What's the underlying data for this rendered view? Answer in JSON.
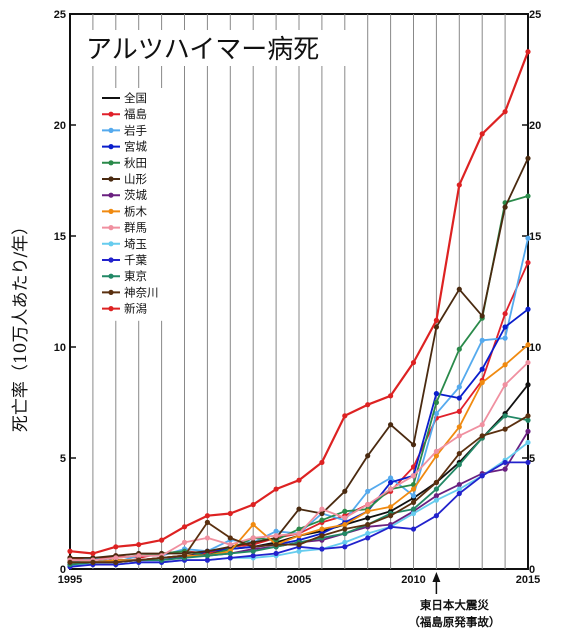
{
  "chart_data": {
    "type": "line",
    "title": "アルツハイマー病死",
    "ylabel": "死亡率（10万人あたり/年）",
    "xlabel": "",
    "x": [
      1995,
      1996,
      1997,
      1998,
      1999,
      2000,
      2001,
      2002,
      2003,
      2004,
      2005,
      2006,
      2007,
      2008,
      2009,
      2010,
      2011,
      2012,
      2013,
      2014,
      2015
    ],
    "xlim": [
      1995,
      2015
    ],
    "ylim": [
      0,
      25
    ],
    "x_ticks": [
      1995,
      2000,
      2005,
      2010,
      2015
    ],
    "y_ticks": [
      0,
      5,
      10,
      15,
      20,
      25
    ],
    "grid": "vertical lines each year",
    "legend_position": "top-left",
    "series": [
      {
        "name": "全国",
        "color": "#111111",
        "values": [
          0.3,
          0.3,
          0.4,
          0.4,
          0.5,
          0.6,
          0.7,
          0.9,
          1.0,
          1.2,
          1.5,
          1.7,
          2.0,
          2.3,
          2.6,
          3.2,
          3.9,
          4.8,
          5.9,
          7.0,
          8.3
        ]
      },
      {
        "name": "福島",
        "color": "#e0202a",
        "values": [
          0.5,
          0.4,
          0.6,
          0.5,
          0.7,
          0.8,
          0.7,
          1.0,
          1.1,
          1.4,
          1.6,
          2.1,
          2.4,
          2.9,
          3.5,
          4.6,
          6.8,
          7.1,
          8.5,
          11.5,
          13.8
        ]
      },
      {
        "name": "岩手",
        "color": "#55aaee",
        "values": [
          0.3,
          0.5,
          0.3,
          0.6,
          0.6,
          0.9,
          0.8,
          1.3,
          1.2,
          1.7,
          1.6,
          2.5,
          2.2,
          3.5,
          4.1,
          3.3,
          7.0,
          8.2,
          10.3,
          10.4,
          14.9
        ]
      },
      {
        "name": "宮城",
        "color": "#0a1ecc",
        "values": [
          0.2,
          0.3,
          0.4,
          0.4,
          0.5,
          0.5,
          0.8,
          0.9,
          1.0,
          1.1,
          1.3,
          1.6,
          2.1,
          2.6,
          3.9,
          4.2,
          7.9,
          7.7,
          9.0,
          10.9,
          11.7
        ]
      },
      {
        "name": "秋田",
        "color": "#2a8a4a",
        "values": [
          0.4,
          0.4,
          0.5,
          0.6,
          0.7,
          0.8,
          0.6,
          0.9,
          1.4,
          1.3,
          1.8,
          2.2,
          2.6,
          2.7,
          3.6,
          3.8,
          7.5,
          9.9,
          11.3,
          16.5,
          16.8
        ]
      },
      {
        "name": "山形",
        "color": "#4a2a10",
        "values": [
          0.5,
          0.5,
          0.6,
          0.7,
          0.7,
          0.7,
          0.8,
          1.0,
          1.2,
          1.4,
          2.7,
          2.5,
          3.5,
          5.1,
          6.5,
          5.6,
          10.9,
          12.6,
          11.4,
          16.3,
          18.5
        ]
      },
      {
        "name": "茨城",
        "color": "#6a2080",
        "values": [
          0.2,
          0.3,
          0.3,
          0.4,
          0.5,
          0.6,
          0.6,
          0.7,
          0.9,
          1.0,
          1.2,
          1.3,
          1.6,
          1.9,
          2.0,
          2.6,
          3.3,
          3.8,
          4.3,
          4.5,
          6.2
        ]
      },
      {
        "name": "栃木",
        "color": "#f08a10",
        "values": [
          0.3,
          0.3,
          0.4,
          0.4,
          0.5,
          0.6,
          0.6,
          0.8,
          2.0,
          1.1,
          1.5,
          1.8,
          2.0,
          2.6,
          2.8,
          3.6,
          5.1,
          6.4,
          8.4,
          9.2,
          10.1
        ]
      },
      {
        "name": "群馬",
        "color": "#f090a0",
        "values": [
          0.4,
          0.4,
          0.5,
          0.6,
          0.6,
          1.2,
          1.4,
          1.1,
          1.4,
          1.5,
          1.6,
          2.7,
          2.3,
          2.9,
          3.6,
          4.2,
          5.3,
          6.0,
          6.5,
          8.3,
          9.3
        ]
      },
      {
        "name": "埼玉",
        "color": "#66ccee",
        "values": [
          0.2,
          0.2,
          0.2,
          0.3,
          0.3,
          0.4,
          0.4,
          0.5,
          0.5,
          0.6,
          0.8,
          0.9,
          1.2,
          1.6,
          1.9,
          2.5,
          3.1,
          3.6,
          4.2,
          4.9,
          5.7
        ]
      },
      {
        "name": "千葉",
        "color": "#2222cc",
        "values": [
          0.1,
          0.2,
          0.2,
          0.3,
          0.3,
          0.4,
          0.4,
          0.5,
          0.6,
          0.7,
          1.0,
          0.9,
          1.0,
          1.4,
          1.9,
          1.8,
          2.4,
          3.4,
          4.2,
          4.8,
          4.8
        ]
      },
      {
        "name": "東京",
        "color": "#228866",
        "values": [
          0.2,
          0.3,
          0.3,
          0.4,
          0.4,
          0.5,
          0.6,
          0.7,
          0.8,
          1.0,
          1.2,
          1.4,
          1.6,
          2.0,
          2.5,
          2.7,
          3.6,
          4.7,
          5.9,
          6.9,
          6.7
        ]
      },
      {
        "name": "神奈川",
        "color": "#5a3010",
        "values": [
          0.3,
          0.3,
          0.3,
          0.4,
          0.5,
          0.6,
          2.1,
          1.4,
          1.0,
          1.1,
          1.1,
          1.5,
          1.8,
          2.0,
          2.4,
          3.0,
          3.9,
          5.2,
          6.0,
          6.3,
          6.9
        ]
      },
      {
        "name": "新潟",
        "color": "#dd2222",
        "values": [
          0.8,
          0.7,
          1.0,
          1.1,
          1.3,
          1.9,
          2.4,
          2.5,
          2.9,
          3.6,
          4.0,
          4.8,
          6.9,
          7.4,
          7.8,
          9.3,
          11.2,
          17.3,
          19.6,
          20.6,
          23.3
        ]
      }
    ],
    "annotations": [
      {
        "x": 2011,
        "lines": [
          "東日本大震災",
          "（福島原発事故）"
        ]
      }
    ]
  }
}
